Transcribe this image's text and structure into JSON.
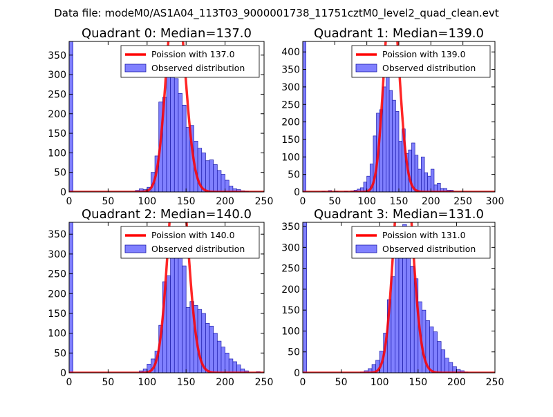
{
  "figure_title": "Data file: modeM0/AS1A04_113T03_9000001738_11751cztM0_level2_quad_clean.evt",
  "colors": {
    "observed": "#8080ff",
    "observed_edge": "#1a1aaa",
    "poisson": "#ff0000"
  },
  "chart_data": [
    {
      "type": "bar",
      "title": "Quadrant 0: Median=137.0",
      "median": 137.0,
      "xlim": [
        0,
        250
      ],
      "ylim": [
        0,
        385
      ],
      "xticks": [
        0,
        50,
        100,
        150,
        200,
        250
      ],
      "yticks": [
        0,
        50,
        100,
        150,
        200,
        250,
        300,
        350
      ],
      "bin_width": 5,
      "bins": [
        {
          "x": 0,
          "count": 385
        },
        {
          "x": 85,
          "count": 4
        },
        {
          "x": 90,
          "count": 8
        },
        {
          "x": 95,
          "count": 6
        },
        {
          "x": 100,
          "count": 12
        },
        {
          "x": 105,
          "count": 50
        },
        {
          "x": 110,
          "count": 92
        },
        {
          "x": 115,
          "count": 230
        },
        {
          "x": 120,
          "count": 242
        },
        {
          "x": 125,
          "count": 295
        },
        {
          "x": 130,
          "count": 335
        },
        {
          "x": 135,
          "count": 290
        },
        {
          "x": 140,
          "count": 252
        },
        {
          "x": 145,
          "count": 222
        },
        {
          "x": 150,
          "count": 165
        },
        {
          "x": 155,
          "count": 170
        },
        {
          "x": 160,
          "count": 130
        },
        {
          "x": 165,
          "count": 112
        },
        {
          "x": 170,
          "count": 100
        },
        {
          "x": 175,
          "count": 80
        },
        {
          "x": 180,
          "count": 82
        },
        {
          "x": 185,
          "count": 70
        },
        {
          "x": 190,
          "count": 55
        },
        {
          "x": 195,
          "count": 45
        },
        {
          "x": 200,
          "count": 30
        },
        {
          "x": 205,
          "count": 15
        },
        {
          "x": 210,
          "count": 8
        },
        {
          "x": 215,
          "count": 6
        },
        {
          "x": 220,
          "count": 3
        },
        {
          "x": 225,
          "count": 2
        }
      ],
      "legend": {
        "fit_label": "Poission with 137.0",
        "hist_label": "Observed distribution",
        "location": "top-right"
      }
    },
    {
      "type": "bar",
      "title": "Quadrant 1: Median=139.0",
      "median": 139.0,
      "xlim": [
        0,
        300
      ],
      "ylim": [
        0,
        430
      ],
      "xticks": [
        0,
        50,
        100,
        150,
        200,
        250,
        300
      ],
      "yticks": [
        0,
        50,
        100,
        150,
        200,
        250,
        300,
        350,
        400
      ],
      "bin_width": 5,
      "bins": [
        {
          "x": 0,
          "count": 430
        },
        {
          "x": 30,
          "count": 2
        },
        {
          "x": 40,
          "count": 4
        },
        {
          "x": 50,
          "count": 2
        },
        {
          "x": 65,
          "count": 2
        },
        {
          "x": 75,
          "count": 3
        },
        {
          "x": 80,
          "count": 5
        },
        {
          "x": 85,
          "count": 8
        },
        {
          "x": 90,
          "count": 12
        },
        {
          "x": 95,
          "count": 28
        },
        {
          "x": 100,
          "count": 45
        },
        {
          "x": 105,
          "count": 80
        },
        {
          "x": 110,
          "count": 160
        },
        {
          "x": 115,
          "count": 225
        },
        {
          "x": 120,
          "count": 235
        },
        {
          "x": 125,
          "count": 300
        },
        {
          "x": 130,
          "count": 340
        },
        {
          "x": 135,
          "count": 290
        },
        {
          "x": 140,
          "count": 262
        },
        {
          "x": 145,
          "count": 230
        },
        {
          "x": 150,
          "count": 145
        },
        {
          "x": 155,
          "count": 180
        },
        {
          "x": 160,
          "count": 110
        },
        {
          "x": 165,
          "count": 120
        },
        {
          "x": 170,
          "count": 140
        },
        {
          "x": 175,
          "count": 105
        },
        {
          "x": 180,
          "count": 65
        },
        {
          "x": 185,
          "count": 100
        },
        {
          "x": 190,
          "count": 55
        },
        {
          "x": 195,
          "count": 45
        },
        {
          "x": 200,
          "count": 65
        },
        {
          "x": 205,
          "count": 20
        },
        {
          "x": 210,
          "count": 25
        },
        {
          "x": 215,
          "count": 10
        },
        {
          "x": 220,
          "count": 10
        },
        {
          "x": 225,
          "count": 5
        },
        {
          "x": 230,
          "count": 5
        }
      ],
      "legend": {
        "fit_label": "Poission with 139.0",
        "hist_label": "Observed distribution",
        "location": "top-right"
      }
    },
    {
      "type": "bar",
      "title": "Quadrant 2: Median=140.0",
      "median": 140.0,
      "xlim": [
        0,
        250
      ],
      "ylim": [
        0,
        380
      ],
      "xticks": [
        0,
        50,
        100,
        150,
        200,
        250
      ],
      "yticks": [
        0,
        50,
        100,
        150,
        200,
        250,
        300,
        350
      ],
      "bin_width": 5,
      "bins": [
        {
          "x": 0,
          "count": 380
        },
        {
          "x": 90,
          "count": 5
        },
        {
          "x": 95,
          "count": 10
        },
        {
          "x": 100,
          "count": 22
        },
        {
          "x": 105,
          "count": 35
        },
        {
          "x": 110,
          "count": 55
        },
        {
          "x": 115,
          "count": 120
        },
        {
          "x": 120,
          "count": 230
        },
        {
          "x": 125,
          "count": 245
        },
        {
          "x": 130,
          "count": 350
        },
        {
          "x": 135,
          "count": 320
        },
        {
          "x": 140,
          "count": 330
        },
        {
          "x": 145,
          "count": 270
        },
        {
          "x": 150,
          "count": 165
        },
        {
          "x": 155,
          "count": 180
        },
        {
          "x": 160,
          "count": 170
        },
        {
          "x": 165,
          "count": 160
        },
        {
          "x": 170,
          "count": 150
        },
        {
          "x": 175,
          "count": 125
        },
        {
          "x": 180,
          "count": 118
        },
        {
          "x": 185,
          "count": 100
        },
        {
          "x": 190,
          "count": 80
        },
        {
          "x": 195,
          "count": 65
        },
        {
          "x": 200,
          "count": 50
        },
        {
          "x": 205,
          "count": 35
        },
        {
          "x": 210,
          "count": 28
        },
        {
          "x": 215,
          "count": 20
        },
        {
          "x": 220,
          "count": 10
        },
        {
          "x": 225,
          "count": 5
        },
        {
          "x": 240,
          "count": 3
        }
      ],
      "legend": {
        "fit_label": "Poission with 140.0",
        "hist_label": "Observed distribution",
        "location": "top-right"
      }
    },
    {
      "type": "bar",
      "title": "Quadrant 3: Median=131.0",
      "median": 131.0,
      "xlim": [
        0,
        250
      ],
      "ylim": [
        0,
        360
      ],
      "xticks": [
        0,
        50,
        100,
        150,
        200,
        250
      ],
      "yticks": [
        0,
        50,
        100,
        150,
        200,
        250,
        300,
        350
      ],
      "bin_width": 5,
      "bins": [
        {
          "x": 0,
          "count": 360
        },
        {
          "x": 75,
          "count": 2
        },
        {
          "x": 80,
          "count": 5
        },
        {
          "x": 85,
          "count": 10
        },
        {
          "x": 90,
          "count": 20
        },
        {
          "x": 95,
          "count": 30
        },
        {
          "x": 100,
          "count": 52
        },
        {
          "x": 105,
          "count": 95
        },
        {
          "x": 110,
          "count": 175
        },
        {
          "x": 115,
          "count": 230
        },
        {
          "x": 120,
          "count": 290
        },
        {
          "x": 125,
          "count": 335
        },
        {
          "x": 130,
          "count": 355
        },
        {
          "x": 135,
          "count": 285
        },
        {
          "x": 140,
          "count": 255
        },
        {
          "x": 145,
          "count": 225
        },
        {
          "x": 150,
          "count": 170
        },
        {
          "x": 155,
          "count": 150
        },
        {
          "x": 160,
          "count": 125
        },
        {
          "x": 165,
          "count": 110
        },
        {
          "x": 170,
          "count": 98
        },
        {
          "x": 175,
          "count": 75
        },
        {
          "x": 180,
          "count": 55
        },
        {
          "x": 185,
          "count": 35
        },
        {
          "x": 190,
          "count": 25
        },
        {
          "x": 195,
          "count": 15
        },
        {
          "x": 200,
          "count": 8
        },
        {
          "x": 205,
          "count": 5
        },
        {
          "x": 210,
          "count": 2
        }
      ],
      "legend": {
        "fit_label": "Poission with 131.0",
        "hist_label": "Observed distribution",
        "location": "top-right"
      }
    }
  ]
}
